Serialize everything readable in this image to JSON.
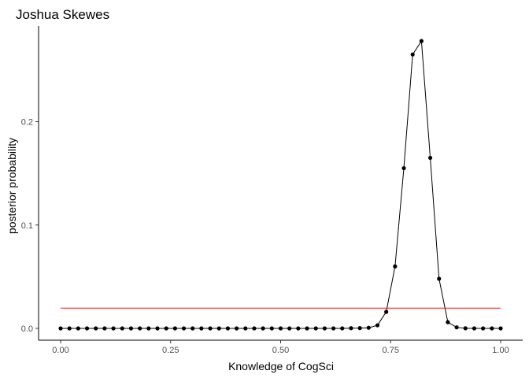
{
  "chart_data": {
    "type": "line",
    "title": "Joshua Skewes",
    "xlabel": "Knowledge of CogSci",
    "ylabel": "posterior probability",
    "xlim": [
      0,
      1
    ],
    "ylim": [
      0,
      0.28
    ],
    "xticks": [
      "0.00",
      "0.25",
      "0.50",
      "0.75",
      "1.00"
    ],
    "yticks": [
      "0.0",
      "0.1",
      "0.2"
    ],
    "grid": false,
    "x": [
      0.0,
      0.02,
      0.04,
      0.06,
      0.08,
      0.1,
      0.12,
      0.14,
      0.16,
      0.18,
      0.2,
      0.22,
      0.24,
      0.26,
      0.28,
      0.3,
      0.32,
      0.34,
      0.36,
      0.38,
      0.4,
      0.42,
      0.44,
      0.46,
      0.48,
      0.5,
      0.52,
      0.54,
      0.56,
      0.58,
      0.6,
      0.62,
      0.64,
      0.66,
      0.68,
      0.7,
      0.72,
      0.74,
      0.76,
      0.78,
      0.8,
      0.82,
      0.84,
      0.86,
      0.88,
      0.9,
      0.92,
      0.94,
      0.96,
      0.98,
      1.0
    ],
    "series": [
      {
        "color": "#000000",
        "style": "line+points",
        "values": [
          0,
          0,
          0,
          0,
          0,
          0,
          0,
          0,
          0,
          0,
          0,
          0,
          0,
          0,
          0,
          0,
          0,
          0,
          0,
          0,
          0,
          0,
          0,
          0,
          0,
          0,
          0,
          0,
          0,
          0,
          0,
          0,
          0,
          0.0002,
          0.0003,
          0.0006,
          0.003,
          0.016,
          0.06,
          0.155,
          0.265,
          0.278,
          0.165,
          0.048,
          0.006,
          0.001,
          0.0001,
          0,
          0,
          0,
          0
        ]
      },
      {
        "color": "#e41a1c",
        "style": "line",
        "values": [
          0.0196,
          0.0196,
          0.0196,
          0.0196,
          0.0196,
          0.0196,
          0.0196,
          0.0196,
          0.0196,
          0.0196,
          0.0196,
          0.0196,
          0.0196,
          0.0196,
          0.0196,
          0.0196,
          0.0196,
          0.0196,
          0.0196,
          0.0196,
          0.0196,
          0.0196,
          0.0196,
          0.0196,
          0.0196,
          0.0196,
          0.0196,
          0.0196,
          0.0196,
          0.0196,
          0.0196,
          0.0196,
          0.0196,
          0.0196,
          0.0196,
          0.0196,
          0.0196,
          0.0196,
          0.0196,
          0.0196,
          0.0196,
          0.0196,
          0.0196,
          0.0196,
          0.0196,
          0.0196,
          0.0196,
          0.0196,
          0.0196,
          0.0196,
          0.0196
        ]
      }
    ]
  }
}
